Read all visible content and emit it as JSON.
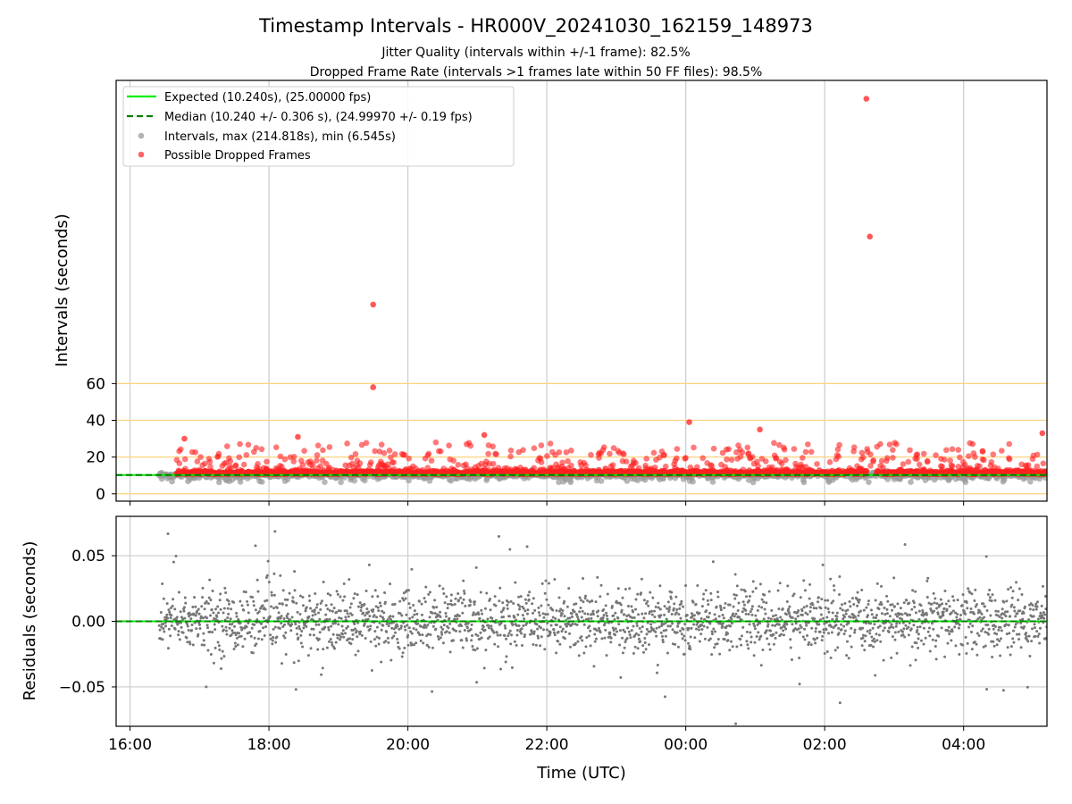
{
  "chart_data": [
    {
      "type": "scatter",
      "title": "Timestamp Intervals - HR000V_20241030_162159_148973",
      "subtitle_lines": [
        "Jitter Quality (intervals within +/-1 frame): 82.5%",
        "Dropped Frame Rate (intervals >1 frames late within 50 FF files): 98.5%"
      ],
      "ylabel": "Intervals (seconds)",
      "x_ticks": [
        "16:00",
        "18:00",
        "20:00",
        "22:00",
        "00:00",
        "02:00",
        "04:00"
      ],
      "y_ticks": [
        "0",
        "20",
        "40",
        "60"
      ],
      "y_tick_values": [
        0,
        20,
        40,
        60
      ],
      "xlim_hours": [
        15.8,
        29.2
      ],
      "ylim": [
        -4,
        225
      ],
      "grid": "x",
      "threshold_lines": [
        0,
        20,
        40,
        60
      ],
      "threshold_color": "#ffd27f",
      "legend_position": "upper-left",
      "legend": [
        {
          "label": "Expected (10.240s), (25.00000 fps)",
          "style": "solid-line",
          "color": "#00ee00"
        },
        {
          "label": "Median (10.240 +/- 0.306 s), (24.99970 +/- 0.19 fps)",
          "style": "dashed-line",
          "color": "#008000"
        },
        {
          "label": "Intervals, max (214.818s), min (6.545s)",
          "style": "marker",
          "color": "#999999"
        },
        {
          "label": "Possible Dropped Frames",
          "style": "marker",
          "color": "#ff3333"
        }
      ],
      "expected_interval": 10.24,
      "median_interval": 10.24,
      "max_interval": 214.818,
      "min_interval": 6.545,
      "coverage_start_hour": 16.42,
      "notable_points": [
        {
          "x": "19:30",
          "y": 103
        },
        {
          "x": "19:30",
          "y": 58
        },
        {
          "x": "02:36",
          "y": 215
        },
        {
          "x": "02:39",
          "y": 140
        },
        {
          "x": "00:03",
          "y": 39
        },
        {
          "x": "01:04",
          "y": 35
        },
        {
          "x": "21:06",
          "y": 32
        },
        {
          "x": "05:08",
          "y": 33
        },
        {
          "x": "16:47",
          "y": 30
        },
        {
          "x": "18:25",
          "y": 31
        }
      ]
    },
    {
      "type": "scatter",
      "xlabel": "Time (UTC)",
      "ylabel": "Residuals (seconds)",
      "x_ticks": [
        "16:00",
        "18:00",
        "20:00",
        "22:00",
        "00:00",
        "02:00",
        "04:00"
      ],
      "y_ticks": [
        "0.05",
        "0.00",
        "−0.05"
      ],
      "y_tick_values": [
        0.05,
        0,
        -0.05
      ],
      "xlim_hours": [
        15.8,
        29.2
      ],
      "ylim": [
        -0.08,
        0.08
      ],
      "grid": "both",
      "point_color": "#777777",
      "zero_line_color": "#00ee00",
      "residual_sd": 0.012
    }
  ]
}
